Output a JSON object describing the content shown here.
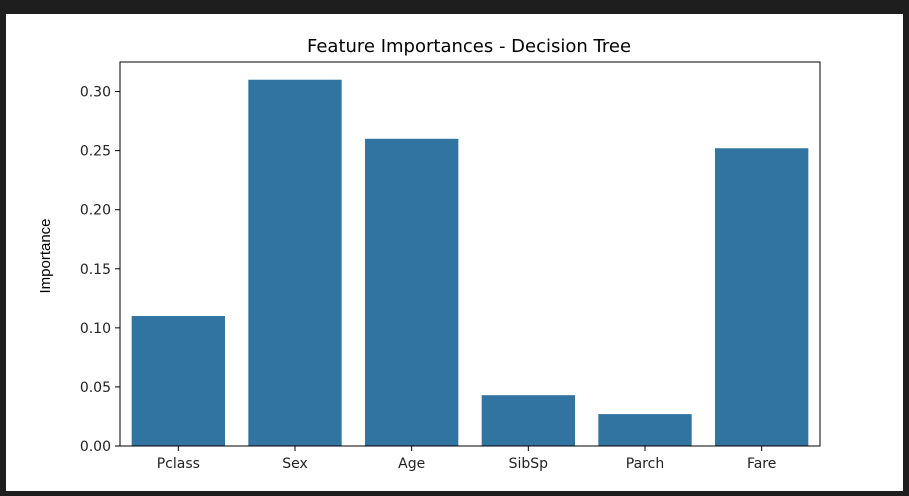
{
  "chart_data": {
    "type": "bar",
    "title": "Feature Importances - Decision Tree",
    "xlabel": "",
    "ylabel": "Importance",
    "categories": [
      "Pclass",
      "Sex",
      "Age",
      "SibSp",
      "Parch",
      "Fare"
    ],
    "values": [
      0.11,
      0.31,
      0.26,
      0.043,
      0.027,
      0.252
    ],
    "ylim": [
      0,
      0.325
    ],
    "yticks": [
      0.0,
      0.05,
      0.1,
      0.15,
      0.2,
      0.25,
      0.3
    ],
    "ytick_labels": [
      "0.00",
      "0.05",
      "0.10",
      "0.15",
      "0.20",
      "0.25",
      "0.30"
    ],
    "bar_color": "#3274a1",
    "grid": false,
    "legend": "none"
  }
}
